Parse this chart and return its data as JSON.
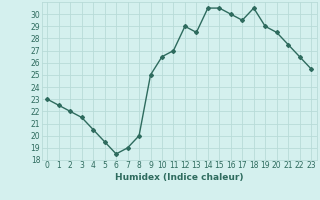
{
  "x": [
    0,
    1,
    2,
    3,
    4,
    5,
    6,
    7,
    8,
    9,
    10,
    11,
    12,
    13,
    14,
    15,
    16,
    17,
    18,
    19,
    20,
    21,
    22,
    23
  ],
  "y": [
    23,
    22.5,
    22,
    21.5,
    20.5,
    19.5,
    18.5,
    19,
    20,
    25,
    26.5,
    27,
    29,
    28.5,
    30.5,
    30.5,
    30,
    29.5,
    30.5,
    29,
    28.5,
    27.5,
    26.5,
    25.5
  ],
  "xlabel": "Humidex (Indice chaleur)",
  "ylim": [
    18,
    31
  ],
  "xlim": [
    -0.5,
    23.5
  ],
  "yticks": [
    18,
    19,
    20,
    21,
    22,
    23,
    24,
    25,
    26,
    27,
    28,
    29,
    30
  ],
  "xticks": [
    0,
    1,
    2,
    3,
    4,
    5,
    6,
    7,
    8,
    9,
    10,
    11,
    12,
    13,
    14,
    15,
    16,
    17,
    18,
    19,
    20,
    21,
    22,
    23
  ],
  "line_color": "#2e6b5e",
  "marker": "D",
  "marker_size": 2.0,
  "bg_color": "#d4f0ee",
  "grid_color": "#b8dbd8",
  "label_color": "#2e6b5e",
  "tick_color": "#2e6b5e",
  "line_width": 1.0,
  "label_fontsize": 6.5,
  "tick_fontsize": 5.5
}
